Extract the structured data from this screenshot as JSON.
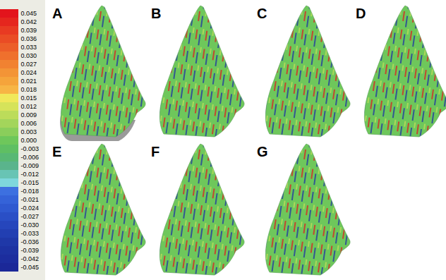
{
  "chart_data": {
    "type": "colormap_figure",
    "panels": [
      "A",
      "B",
      "C",
      "D",
      "E",
      "F",
      "G"
    ],
    "colorbar": {
      "ticks": [
        0.045,
        0.042,
        0.039,
        0.036,
        0.033,
        {
          "value": 0.03,
          "label": "0.030"
        },
        0.027,
        0.024,
        0.021,
        0.018,
        0.015,
        0.012,
        0.009,
        0.006,
        0.003,
        {
          "value": 0,
          "label": "0.000"
        },
        -0.003,
        -0.006,
        -0.009,
        -0.012,
        -0.015,
        -0.018,
        -0.021,
        -0.024,
        -0.027,
        {
          "value": -0.03,
          "label": "-0.030"
        },
        -0.033,
        -0.036,
        -0.039,
        -0.042,
        -0.045
      ],
      "colors": [
        "#e3141c",
        "#e5261e",
        "#e83a22",
        "#ea4c25",
        "#ec5e29",
        "#ef702d",
        "#f18231",
        "#f39436",
        "#f5a43b",
        "#f7b545",
        "#f0e85a",
        "#d6e35a",
        "#bcdc5a",
        "#a3d55b",
        "#8ace5b",
        "#6ec75b",
        "#5fbf63",
        "#58b874",
        "#5ab48c",
        "#68c4b4",
        "#7ed7dc",
        "#3d70e0",
        "#3563d8",
        "#2f59d0",
        "#2a4fc6",
        "#2646bc",
        "#223fb2",
        "#1f38a8",
        "#1d32a2",
        "#1c2d9e",
        "#1b2898"
      ]
    }
  }
}
